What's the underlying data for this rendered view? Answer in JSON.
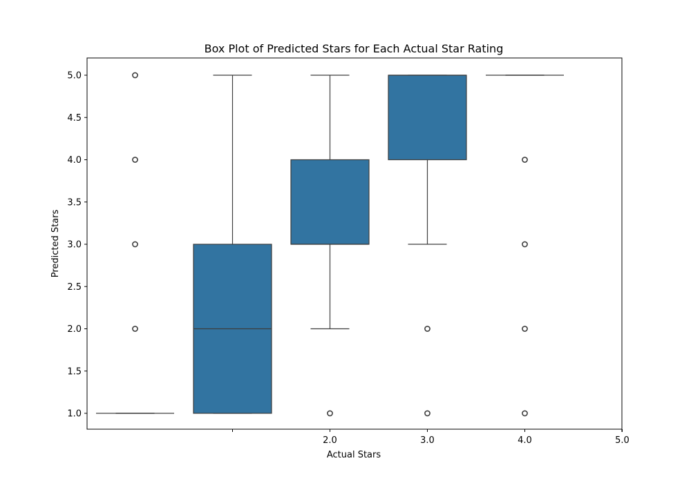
{
  "chart_data": {
    "type": "box",
    "title": "Box Plot of Predicted Stars for Each Actual Star Rating",
    "xlabel": "Actual Stars",
    "ylabel": "Predicted Stars",
    "ylim": [
      0.79,
      5.12
    ],
    "yticks": [
      "1.0",
      "1.5",
      "2.0",
      "2.5",
      "3.0",
      "3.5",
      "4.0",
      "4.5",
      "5.0"
    ],
    "x_tick_labels": [
      "",
      "2.0",
      "3.0",
      "4.0",
      "5.0"
    ],
    "grid": false,
    "box_color": "#3274a1",
    "line_color": "#3d3d3d",
    "boxes": [
      {
        "category": "1.0",
        "whislo": 1.0,
        "q1": 1.0,
        "med": 1.0,
        "q3": 1.0,
        "whishi": 1.0,
        "fliers": [
          2.0,
          3.0,
          4.0,
          5.0
        ]
      },
      {
        "category": "2.0",
        "whislo": 1.0,
        "q1": 1.0,
        "med": 2.0,
        "q3": 3.0,
        "whishi": 5.0,
        "fliers": []
      },
      {
        "category": "3.0",
        "whislo": 2.0,
        "q1": 3.0,
        "med": 3.0,
        "q3": 4.0,
        "whishi": 5.0,
        "fliers": [
          1.0
        ]
      },
      {
        "category": "4.0",
        "whislo": 3.0,
        "q1": 4.0,
        "med": 5.0,
        "q3": 5.0,
        "whishi": 5.0,
        "fliers": [
          1.0,
          2.0
        ]
      },
      {
        "category": "5.0",
        "whislo": 5.0,
        "q1": 5.0,
        "med": 5.0,
        "q3": 5.0,
        "whishi": 5.0,
        "fliers": [
          1.0,
          2.0,
          3.0,
          4.0
        ]
      }
    ]
  }
}
